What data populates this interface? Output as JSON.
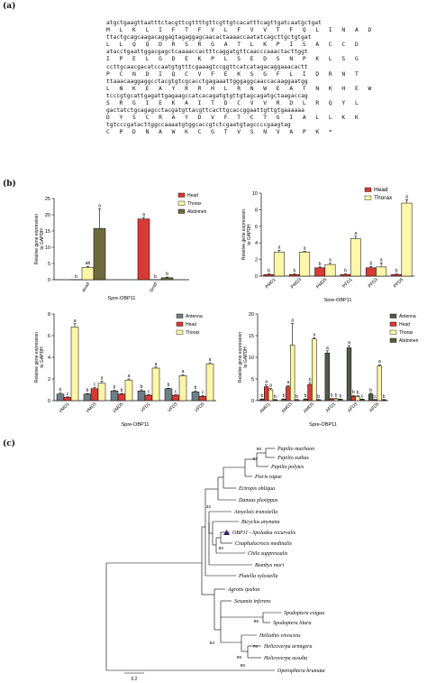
{
  "panels": {
    "a": "(a)",
    "b": "(b)",
    "c": "(c)"
  },
  "sequence": {
    "rows": [
      {
        "nt": "atgctgaagttaatttctacgttcgttttgttcgttgtcacatttcagttgatcaatgctgat",
        "aa": "M  L  K  L  I  F  T  F  V  L  F  V  V  T  F  Q  L  I  N  A  D"
      },
      {
        "nt": "ttactgcagcaagacaggagtagaggagcaacactaaaaccaatatcagcttgctgtgat",
        "aa": "L  L  Q  Q  D  R  S  R  G  A  T  L  K  P  I  S  A  C  C  D"
      },
      {
        "nt": "atacctgaattggacgagctcaaaaccactttcaggatgttcaacccaaactacttggt",
        "aa": "I  P  E  L  G  D  E  K  P  L  S  E  D  S  N  P  K  L  S  G"
      },
      {
        "nt": "ccttgcaacgacatccaatgtgtttcgaaagtccggttcatcatagacaggaaacactt",
        "aa": "P  C  N  D  I  Q  C  V  F  E  K  S  G  F  L  I  D  R  N  T"
      },
      {
        "nt": "ttaaacaaggaggcctacgtgtcgcacctgagaaattgggaggcaaccacaaggaatgg",
        "aa": "L  N  K  E  A  Y  R  R  H  L  R  N  W  E  A  T  N  K  H  E  W"
      },
      {
        "nt": "tcccgtgcattgagattgagaagccatcacagatgtgttgtagcagatgctaagaccag",
        "aa": "S  R  G  I  E  K  A  I  T  D  C  V  V  R  D  L  R  Q  Y  L"
      },
      {
        "nt": "gactatctgcagagcctacgatgttacgttcacttgcaccggaattgttgtgaaaaaa",
        "aa": "D  Y  S  C  R  A  Y  D  V  F  T  C  T  G  I  A  L  L  K  K"
      },
      {
        "nt": "tgtcccgatacttggccaaaatgtggcaccgtctcgaatgtagccccgaagtag",
        "aa": "C  P  D  N  A  W  K  C  G  T  V  S  N  V  A  P  K  *"
      }
    ]
  },
  "chart_data": [
    {
      "type": "bar",
      "ylabel": "Relative gene expression\nto GAPDH",
      "xlabel": "Spre-OBP11",
      "ylim": [
        0,
        25
      ],
      "yticks": [
        "0",
        "5",
        "10",
        "15",
        "20",
        "25"
      ],
      "categories": [
        "4instl",
        "5instl"
      ],
      "series": [
        {
          "name": "Head",
          "color": "#d83a34",
          "values": [
            0,
            18.7
          ],
          "errors": [
            0,
            0.5
          ],
          "letters": [
            "b",
            "a"
          ]
        },
        {
          "name": "Thorax",
          "color": "#fdf6a8",
          "values": [
            3.8,
            0
          ],
          "errors": [
            0.3,
            0
          ],
          "letters": [
            "ab",
            "b"
          ]
        },
        {
          "name": "Abdomen",
          "color": "#6e6a3c",
          "values": [
            15.8,
            0.6
          ],
          "errors": [
            6,
            0.2
          ],
          "letters": [
            "a",
            "b"
          ]
        }
      ],
      "legend_placement": "top-right"
    },
    {
      "type": "bar",
      "ylabel": "Relative gene expression\nto GAPDH",
      "xlabel": "Spre-OBP11",
      "ylim": [
        0,
        10
      ],
      "yticks": [
        "0",
        "2",
        "4",
        "6",
        "8",
        "10"
      ],
      "categories": [
        "PMD1",
        "PMD3",
        "PMD5",
        "PFD1",
        "PFD3",
        "PFD5"
      ],
      "series": [
        {
          "name": "Head",
          "color": "#d83a34",
          "values": [
            0.2,
            0.2,
            1.0,
            0.2,
            1.0,
            0.2
          ],
          "errors": [
            0.05,
            0.05,
            0.1,
            0.05,
            0.15,
            0.05
          ],
          "letters": [
            "b",
            "b",
            "b",
            "b",
            "b",
            "b"
          ]
        },
        {
          "name": "Thorax",
          "color": "#fdf6a8",
          "values": [
            2.9,
            2.9,
            1.4,
            4.5,
            1.1,
            8.8
          ],
          "errors": [
            0.2,
            0.1,
            0.15,
            0.3,
            0.5,
            0.4
          ],
          "letters": [
            "a",
            "a",
            "a",
            "a",
            "a",
            "a"
          ]
        }
      ],
      "legend_placement": "top-left"
    },
    {
      "type": "bar",
      "ylabel": "Relative gene expression\nto GAPDH",
      "xlabel": "Spre-OBP11",
      "ylim": [
        0,
        8
      ],
      "yticks": [
        "0",
        "2",
        "4",
        "6",
        "8"
      ],
      "categories": [
        "VMD1",
        "VMD3",
        "VMD5",
        "VFD1",
        "VFD3",
        "VFD5"
      ],
      "series": [
        {
          "name": "Antenna",
          "color": "#6e7f86",
          "values": [
            0.6,
            0.6,
            0.9,
            0.9,
            1.1,
            0.8
          ],
          "errors": [
            0.1,
            0.05,
            0.05,
            0.1,
            0.05,
            0.1
          ],
          "letters": [
            "b",
            "b",
            "b",
            "b",
            "b",
            "b"
          ]
        },
        {
          "name": "Head",
          "color": "#d83a34",
          "values": [
            0.3,
            1.1,
            0.6,
            0.5,
            0.5,
            0.4
          ],
          "errors": [
            0.05,
            0.1,
            0.05,
            0.05,
            0.05,
            0.05
          ],
          "letters": [
            "c",
            "c",
            "b",
            "c",
            "c",
            "c"
          ]
        },
        {
          "name": "Thorax",
          "color": "#fdf6a8",
          "values": [
            6.8,
            1.6,
            1.9,
            3.0,
            2.3,
            3.4
          ],
          "errors": [
            0.3,
            0.2,
            0.1,
            0.1,
            0.1,
            0.1
          ],
          "letters": [
            "a",
            "a",
            "a",
            "a",
            "a",
            "a"
          ]
        }
      ],
      "legend_placement": "top-right"
    },
    {
      "type": "bar",
      "ylabel": "Relative gene expression\nto GAPDH",
      "xlabel": "Spre-OBP11",
      "ylim": [
        0,
        20
      ],
      "yticks": [
        "0",
        "5",
        "10",
        "15",
        "20"
      ],
      "categories": [
        "AMD1",
        "AMD3",
        "AMD5",
        "AFD1",
        "AFD3",
        "AFD5"
      ],
      "series": [
        {
          "name": "Antenna",
          "color": "#4f5a4a",
          "values": [
            0.3,
            0.3,
            0.3,
            11.0,
            12.2,
            1.5
          ],
          "errors": [
            0.1,
            0.1,
            0.1,
            0.5,
            0.5,
            0.2
          ],
          "letters": [
            "b",
            "b",
            "b",
            "a",
            "a",
            "b"
          ]
        },
        {
          "name": "Head",
          "color": "#d83a34",
          "values": [
            3.2,
            3.2,
            3.7,
            0.4,
            1.0,
            0.2
          ],
          "errors": [
            0.4,
            0.3,
            0.4,
            0.1,
            0.2,
            0.05
          ],
          "letters": [
            "a",
            "a",
            "b",
            "b",
            "b",
            "c"
          ]
        },
        {
          "name": "Thorax",
          "color": "#fdf6a8",
          "values": [
            2.5,
            12.8,
            14.2,
            0.4,
            0.9,
            8.0
          ],
          "errors": [
            0.3,
            5.0,
            0.3,
            0.1,
            0.2,
            0.3
          ],
          "letters": [
            "a",
            "a",
            "a",
            "b",
            "b",
            "a"
          ]
        },
        {
          "name": "Abdomen",
          "color": "#5a5e3b",
          "values": [
            0.2,
            0.2,
            0.2,
            0.3,
            0.3,
            0.2
          ],
          "errors": [
            0.05,
            0.05,
            0.05,
            0.05,
            0.05,
            0.05
          ],
          "letters": [
            "b",
            "b",
            "b",
            "b",
            "c",
            "b"
          ]
        }
      ],
      "legend_placement": "top-right"
    },
    {
      "type": "tree",
      "taxa": [
        "Papilio machaon",
        "Papilio xuthus",
        "Papilio polytes",
        "Pieris rapae",
        "Ectropis obliqua",
        "Danaus plexippus",
        "Amyelois transitella",
        "Bicyclus anynana",
        "OBP11 - Spoladea recurvalis",
        "Cnaphalocrocis medinalis",
        "Chilo suppressalis",
        "Bombyx mori",
        "Plutella xylostella",
        "Agrotis ipsilon",
        "Sesamia inferens",
        "Spodoptera exigua",
        "Spodoptera litura",
        "Heliothis virescens",
        "Helicoverpa armigera",
        "Helicoverpa assulta",
        "Operophtera brumata"
      ],
      "support": [
        "98",
        "67",
        "32",
        "60",
        "95",
        "63",
        "70",
        "99",
        "85"
      ],
      "scale_label": "0.2"
    }
  ]
}
